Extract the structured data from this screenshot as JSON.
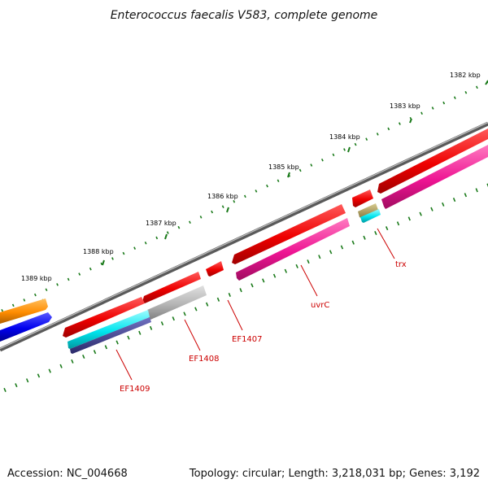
{
  "title": "Enterococcus faecalis V583, complete genome",
  "accession_text": "Accession: NC_004668",
  "summary_text": "Topology: circular; Length: 3,218,031 bp; Genes: 3,192",
  "kbp_labels": [
    "1382 kbp",
    "1383 kbp",
    "1384 kbp",
    "1385 kbp",
    "1386 kbp",
    "1387 kbp",
    "1388 kbp",
    "1389 kbp"
  ],
  "gene_labels": [
    "trx",
    "uvrC",
    "EF1407",
    "EF1408",
    "EF1409"
  ],
  "colors": {
    "backbone": "#7a7a7a",
    "tick": "#1a7a1a",
    "gene_red": "#ee0000",
    "cds_pink": "#ee1493",
    "cyan": "#00e5ee",
    "gray_feature": "#b5b5b5",
    "navy": "#3a3a8a",
    "orange": "#ff8c00",
    "blue": "#0000ee",
    "tan": "#b0a060",
    "label_red": "#cc0000"
  }
}
